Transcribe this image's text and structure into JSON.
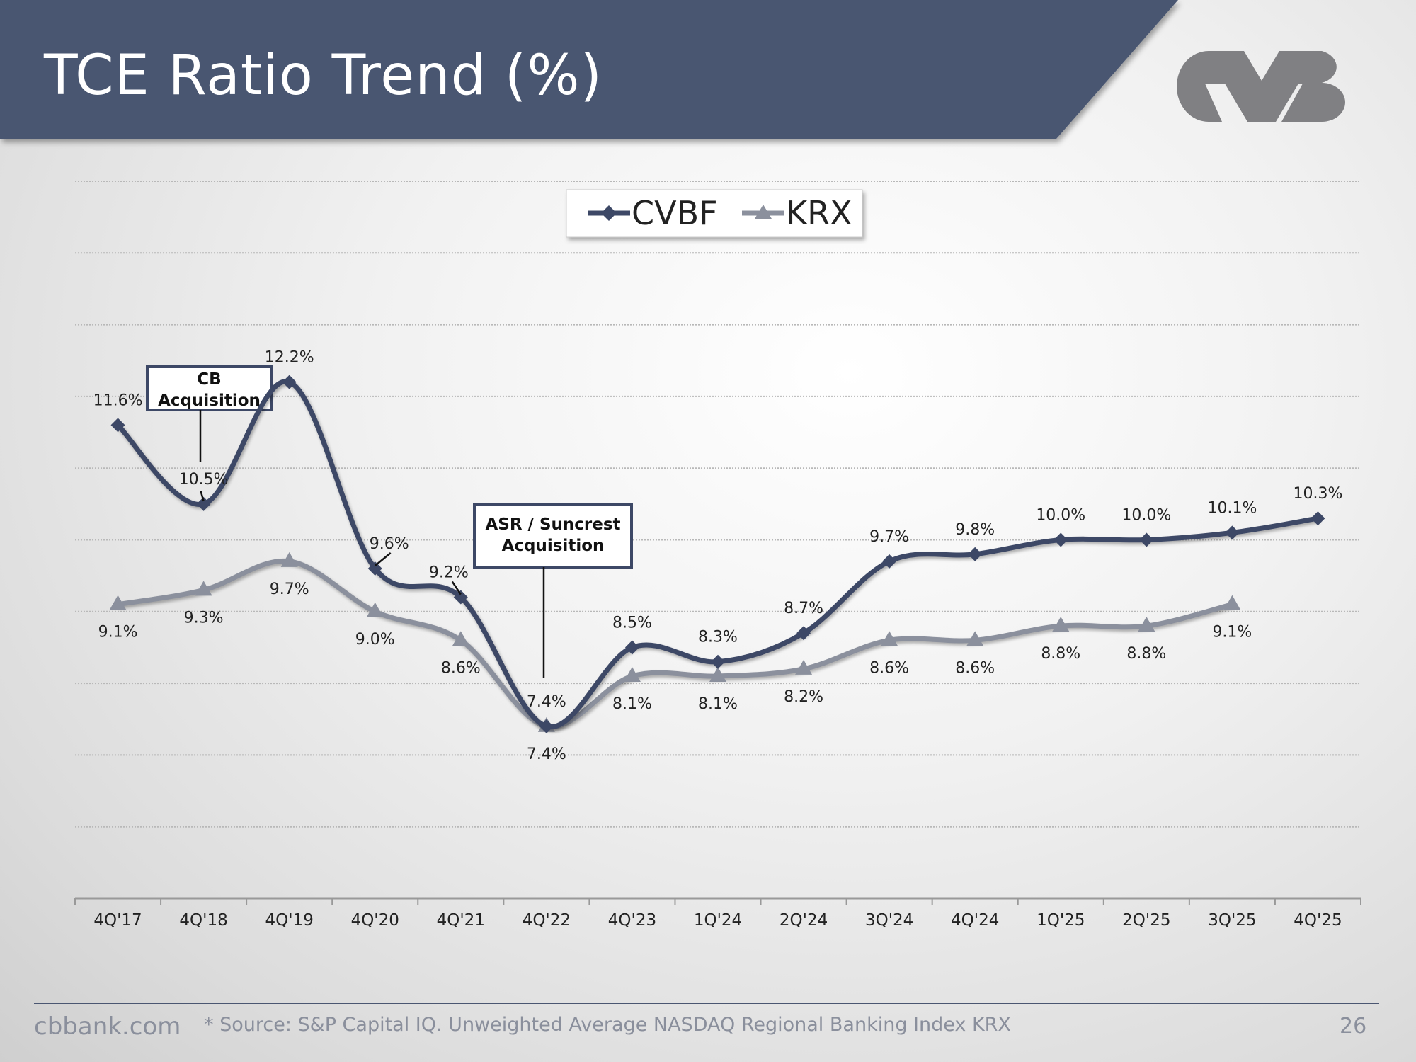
{
  "header": {
    "title": "TCE Ratio Trend (%)",
    "logo_text": "CVB"
  },
  "footer": {
    "site": "cbbank.com",
    "source": "* Source: S&P Capital IQ. Unweighted Average NASDAQ Regional Banking Index KRX",
    "page_number": "26"
  },
  "colors": {
    "header_bg": "#4a5671",
    "cvbf": "#3d4866",
    "krx": "#8b909d",
    "logo": "#808083"
  },
  "chart_data": {
    "type": "line",
    "title": "TCE Ratio Trend (%)",
    "xlabel": "",
    "ylabel": "",
    "ylim": [
      5,
      15
    ],
    "grid": true,
    "legend_position": "top-center",
    "categories": [
      "4Q'17",
      "4Q'18",
      "4Q'19",
      "4Q'20",
      "4Q'21",
      "4Q'22",
      "4Q'23",
      "1Q'24",
      "2Q'24",
      "3Q'24",
      "4Q'24",
      "1Q'25",
      "2Q'25",
      "3Q'25",
      "4Q'25"
    ],
    "series": [
      {
        "name": "CVBF",
        "marker": "diamond",
        "values": [
          11.6,
          10.5,
          12.2,
          9.6,
          9.2,
          7.4,
          8.5,
          8.3,
          8.7,
          9.7,
          9.8,
          10.0,
          10.0,
          10.1,
          10.3
        ],
        "labels": [
          "11.6%",
          "10.5%",
          "12.2%",
          "9.6%",
          "9.2%",
          "7.4%",
          "8.5%",
          "8.3%",
          "8.7%",
          "9.7%",
          "9.8%",
          "10.0%",
          "10.0%",
          "10.1%",
          "10.3%"
        ]
      },
      {
        "name": "KRX",
        "marker": "triangle",
        "values": [
          9.1,
          9.3,
          9.7,
          9.0,
          8.6,
          7.4,
          8.1,
          8.1,
          8.2,
          8.6,
          8.6,
          8.8,
          8.8,
          9.1,
          null
        ],
        "labels": [
          "9.1%",
          "9.3%",
          "9.7%",
          "9.0%",
          "8.6%",
          "7.4%",
          "8.1%",
          "8.1%",
          "8.2%",
          "8.6%",
          "8.6%",
          "8.8%",
          "8.8%",
          "9.1%",
          ""
        ]
      }
    ],
    "annotations": [
      {
        "lines": [
          "CB",
          "Acquisition"
        ],
        "category": "4Q'18"
      },
      {
        "lines": [
          "ASR / Suncrest",
          "Acquisition"
        ],
        "category": "4Q'22"
      }
    ]
  }
}
